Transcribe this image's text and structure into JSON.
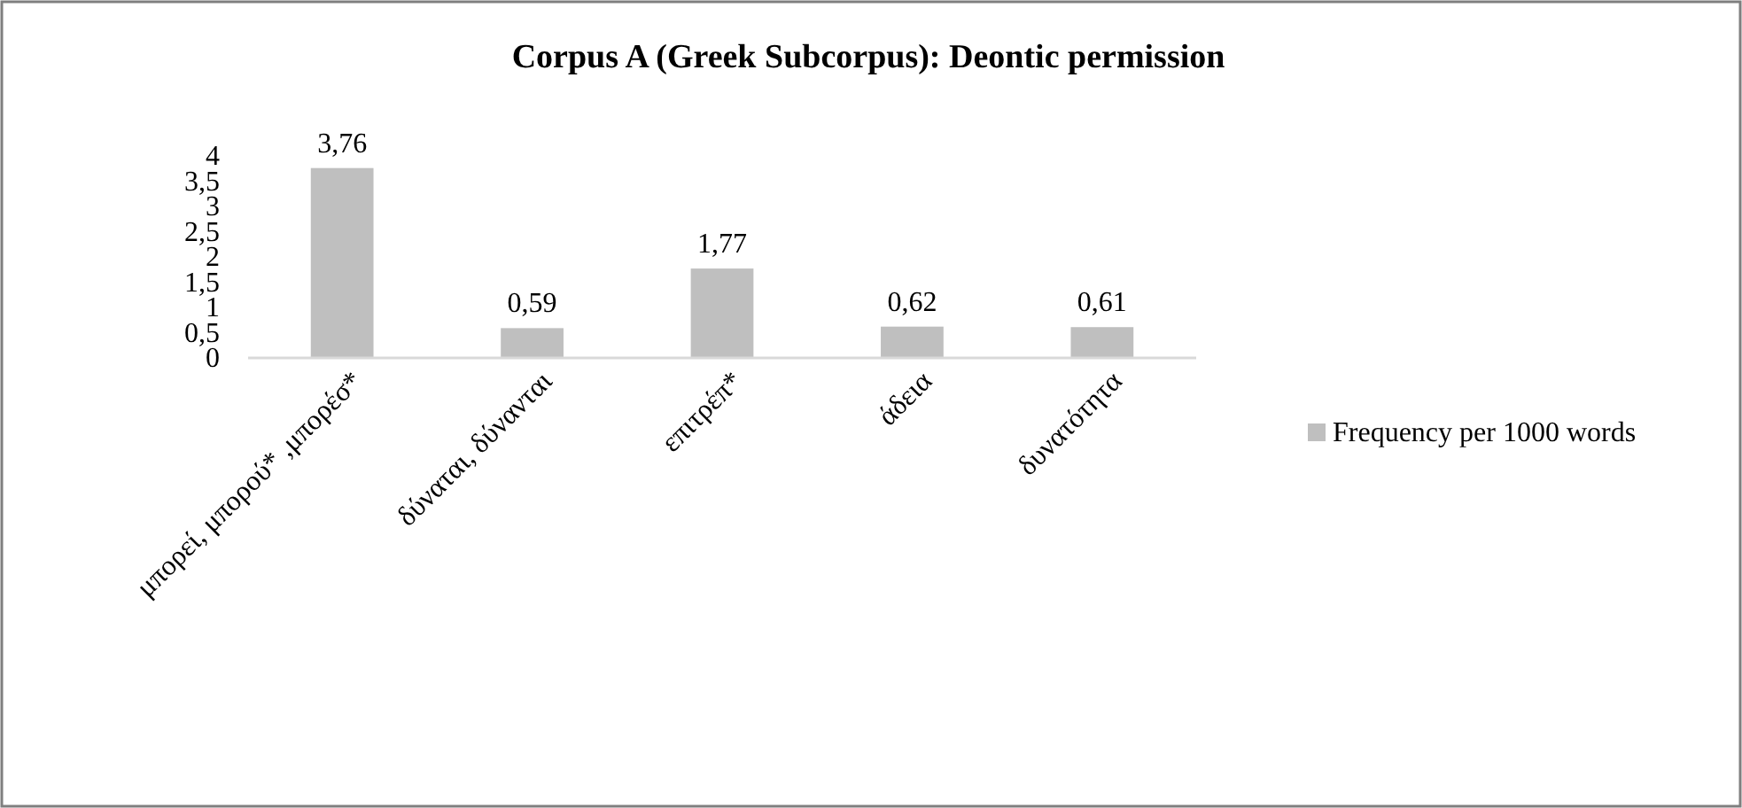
{
  "chart_data": {
    "type": "bar",
    "title": "Corpus A (Greek Subcorpus): Deontic permission",
    "categories": [
      "μπορεί, μπορού* ,μπορέσ*",
      "δύναται, δύνανται",
      "επιτρέπ*",
      "άδεια",
      "δυνατότητα"
    ],
    "series": [
      {
        "name": "Frequency per 1000 words",
        "color": "#bfbfbf",
        "values": [
          3.76,
          0.59,
          1.77,
          0.62,
          0.61
        ],
        "value_labels": [
          "3,76",
          "0,59",
          "1,77",
          "0,62",
          "0,61"
        ]
      }
    ],
    "ylim": [
      0,
      4
    ],
    "yticks": [
      0,
      {
        "value": 0.5,
        "label": "0,5"
      },
      1,
      {
        "value": 1.5,
        "label": "1,5"
      },
      2,
      {
        "value": 2.5,
        "label": "2,5"
      },
      3,
      {
        "value": 3.5,
        "label": "3,5"
      },
      4
    ],
    "legend": "right",
    "grid": false
  }
}
